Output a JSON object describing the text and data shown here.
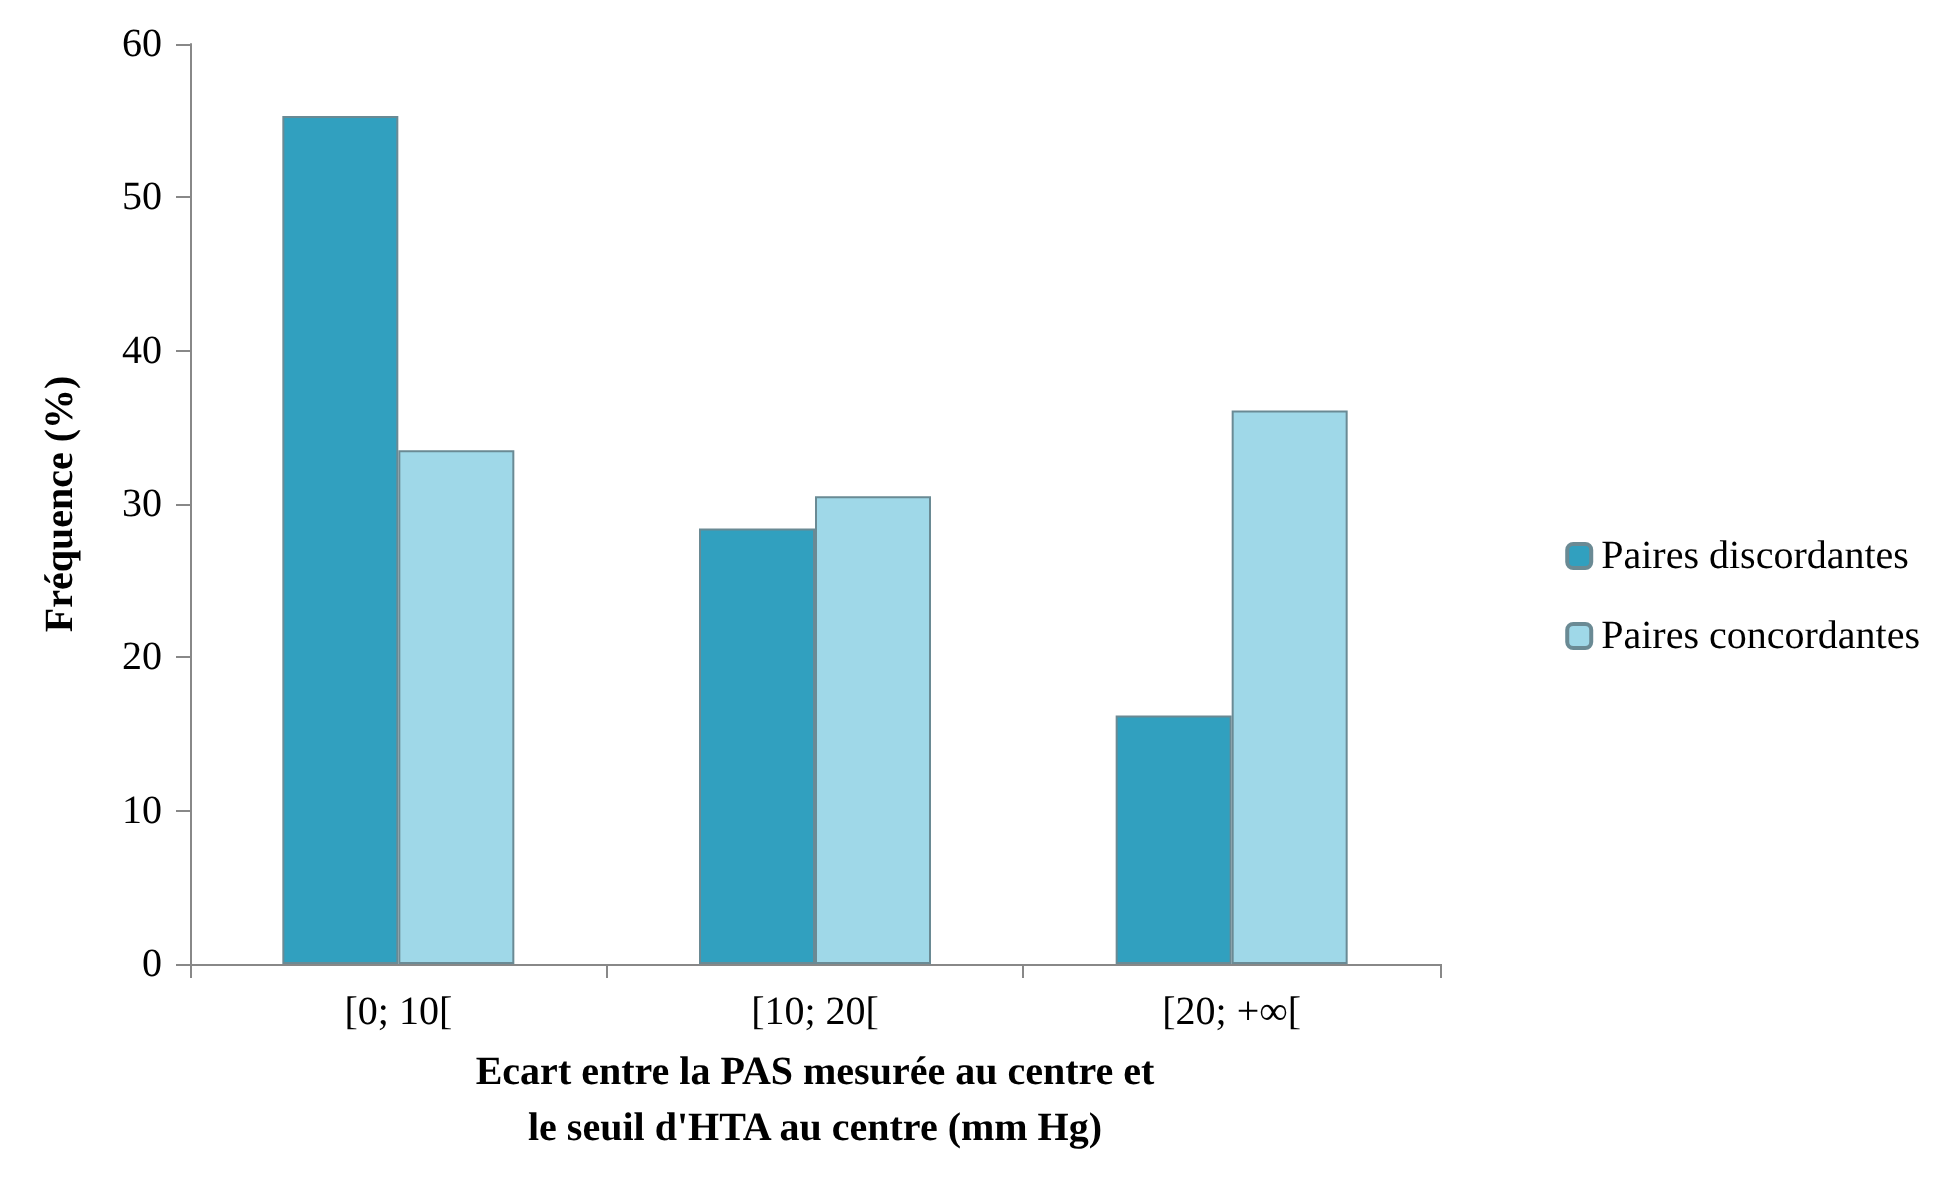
{
  "chart_data": {
    "type": "bar",
    "xlabel": "Ecart entre la PAS mesurée au centre et\nle seuil d'HTA au centre (mm Hg)",
    "ylabel": "Fréquence (%)",
    "categories": [
      "[0; 10[",
      "[10; 20[",
      "[20; +∞["
    ],
    "series": [
      {
        "name": "Paires discordantes",
        "color": "#31a0bf",
        "values": [
          55.3,
          28.4,
          16.2
        ]
      },
      {
        "name": "Paires concordantes",
        "color": "#9fd8e8",
        "values": [
          33.5,
          30.5,
          36.1
        ]
      }
    ],
    "ylim": [
      0,
      60
    ],
    "yticks": [
      0,
      10,
      20,
      30,
      40,
      50,
      60
    ],
    "grid": false,
    "legend": "right"
  }
}
